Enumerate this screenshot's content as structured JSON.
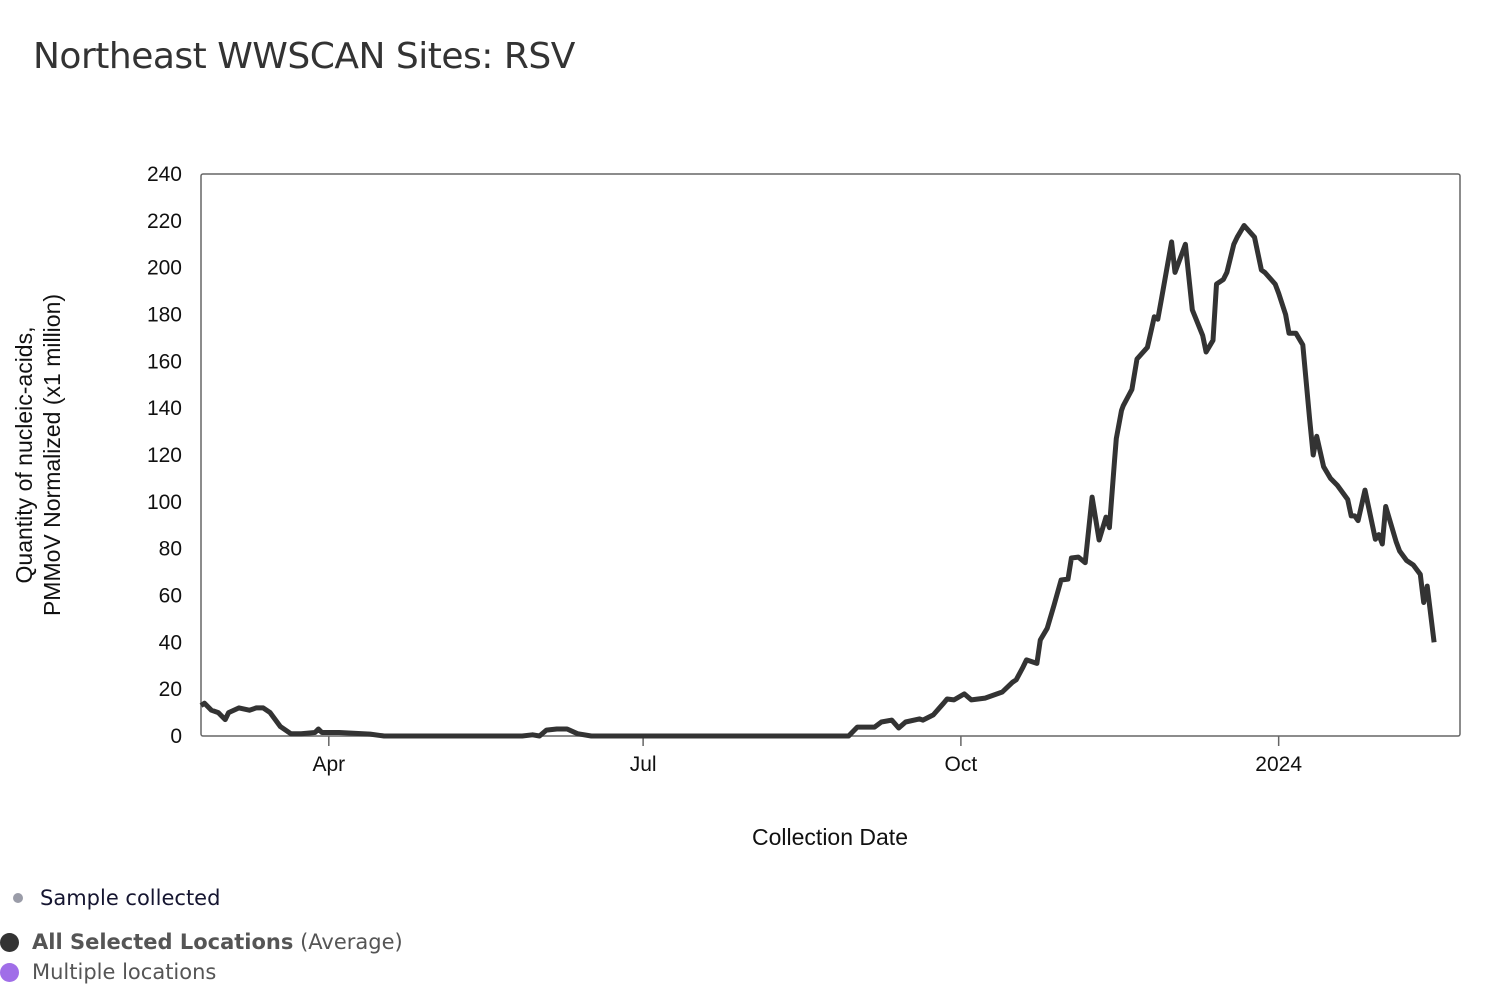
{
  "title": "Northeast WWSCAN Sites: RSV",
  "legend": {
    "sample_collected": "Sample collected",
    "all_selected_bold": "All Selected Locations",
    "all_selected_suffix": "(Average)",
    "multiple_locations": "Multiple locations"
  },
  "colors": {
    "line": "#333333",
    "sample_dot": "#9a9ca8",
    "all_selected": "#333333",
    "multiple": "#a06ee8",
    "axis": "#666666"
  },
  "chart_data": {
    "type": "line",
    "title": "Northeast WWSCAN Sites: RSV",
    "xlabel": "Collection Date",
    "ylabel_line1": "Quantity of nucleic-acids,",
    "ylabel_line2": "PMMoV Normalized (x1 million)",
    "x_unit": "days since 2023-01-01",
    "xlim": [
      53,
      417.5
    ],
    "ylim": [
      0,
      240
    ],
    "yticks": [
      0,
      20,
      40,
      60,
      80,
      100,
      120,
      140,
      160,
      180,
      200,
      220,
      240
    ],
    "xticks": [
      {
        "value": 90,
        "label": "Apr"
      },
      {
        "value": 181,
        "label": "Jul"
      },
      {
        "value": 273,
        "label": "Oct"
      },
      {
        "value": 365,
        "label": "2024"
      }
    ],
    "grid": false,
    "series": [
      {
        "name": "All Selected Locations (Average)",
        "x": [
          53,
          54,
          56,
          58,
          60,
          61,
          64,
          67,
          69,
          71,
          73,
          76,
          79,
          82,
          86,
          87,
          88,
          93,
          102,
          106,
          146,
          149,
          151,
          153,
          156,
          159,
          162,
          166,
          200,
          240.5,
          243,
          248,
          250,
          253,
          255,
          257,
          261,
          262,
          265,
          268,
          269,
          271,
          274,
          276,
          280,
          285,
          288,
          289,
          291,
          292,
          295,
          296,
          298,
          300,
          302,
          304,
          305,
          307,
          309,
          311,
          313,
          315,
          316,
          317.5,
          318,
          319.5,
          320,
          322.5,
          324,
          327,
          329,
          330,
          331,
          334,
          335,
          338,
          340,
          343,
          344,
          346,
          347,
          349,
          350,
          352,
          353,
          355,
          358,
          360,
          361,
          364,
          365,
          367,
          368,
          370,
          372,
          374,
          375,
          376,
          378,
          380,
          382,
          385,
          386,
          387,
          388,
          390,
          393,
          394,
          395,
          396,
          399,
          400,
          402,
          404,
          406,
          407,
          408,
          410
        ],
        "y": [
          13,
          14,
          11,
          10,
          7,
          10,
          12,
          11,
          12,
          12,
          10,
          4,
          1,
          1,
          1.5,
          3,
          1.5,
          1.5,
          0.8,
          0,
          0,
          0.5,
          0,
          2.5,
          3,
          3,
          1,
          0,
          0,
          0,
          3.8,
          3.8,
          6,
          6.8,
          3.4,
          6,
          7.3,
          6.8,
          9,
          14,
          15.8,
          15.4,
          18,
          15.4,
          16.2,
          18.8,
          23,
          24,
          29.5,
          32.5,
          31,
          41,
          46,
          56,
          66.6,
          67,
          76,
          76.4,
          74,
          102,
          83.7,
          93.5,
          89,
          118,
          127,
          139,
          141,
          148,
          161,
          166,
          179,
          178,
          186,
          211,
          198,
          210,
          182,
          171,
          164,
          169,
          193,
          195,
          198,
          210,
          213,
          218,
          213,
          199,
          198,
          193,
          189,
          180,
          172,
          172,
          167,
          135,
          120,
          128,
          115,
          110,
          107,
          101,
          94,
          94,
          92,
          105,
          84,
          86,
          82,
          98,
          83,
          79,
          75,
          73,
          69,
          57,
          64,
          40
        ]
      }
    ]
  }
}
